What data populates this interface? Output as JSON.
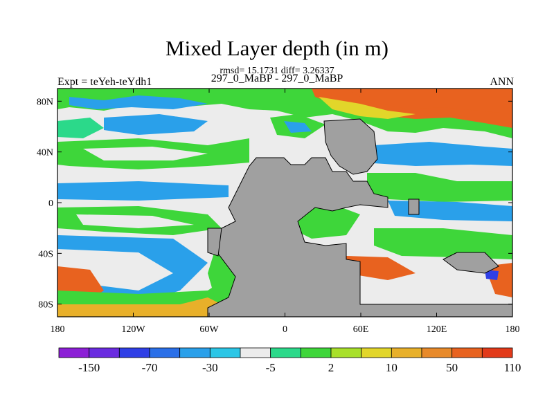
{
  "chart_data": {
    "type": "heatmap",
    "title": "Mixed Layer depth (in m)",
    "stats_line": "rmsd= 15.1731  diff= 3.26337",
    "subtitle": "297_0_MaBP - 297_0_MaBP",
    "left_label": "Expt = teYeh-teYdh1",
    "right_label": "ANN",
    "x_ticks": [
      "180",
      "120W",
      "60W",
      "0",
      "60E",
      "120E",
      "180"
    ],
    "x_tick_values": [
      -180,
      -120,
      -60,
      0,
      60,
      120,
      180
    ],
    "y_ticks": [
      "80N",
      "40N",
      "0",
      "40S",
      "80S"
    ],
    "y_tick_values": [
      80,
      40,
      0,
      -40,
      -80
    ],
    "xlim": [
      -180,
      180
    ],
    "ylim": [
      -90,
      90
    ],
    "colorbar": {
      "colors": [
        "#8c1fd6",
        "#6a2be0",
        "#2f3fe6",
        "#2a6fe8",
        "#2aa0ea",
        "#2bc6e6",
        "#ececec",
        "#2bd98a",
        "#3ed63a",
        "#a8e02a",
        "#e2d62a",
        "#e8b02a",
        "#e88a2a",
        "#e8621f",
        "#e23a1a"
      ],
      "labels": [
        "-150",
        "-70",
        "-30",
        "-5",
        "2",
        "10",
        "50",
        "110"
      ]
    },
    "land_color": "#a0a0a0"
  }
}
